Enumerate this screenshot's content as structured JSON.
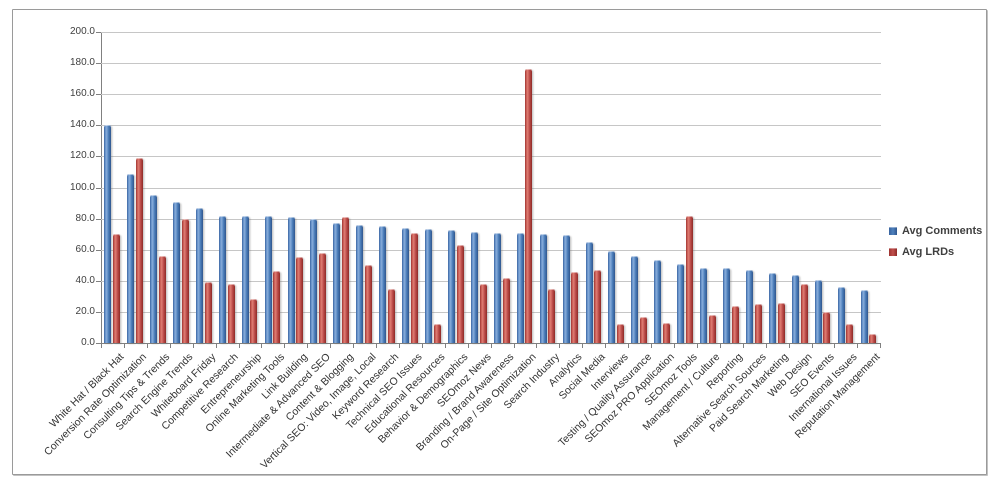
{
  "chart_data": {
    "type": "bar",
    "title": "",
    "categories": [
      "White Hat / Black Hat",
      "Conversion Rate Optimization",
      "Consulting Tips & Trends",
      "Search Engine Trends",
      "Whiteboard Friday",
      "Competitive Research",
      "Entrepreneurship",
      "Online Marketing Tools",
      "Link Building",
      "Intermediate & Advanced SEO",
      "Content & Blogging",
      "Vertical SEO: Video, Image, Local",
      "Keyword Research",
      "Technical SEO Issues",
      "Educational Resources",
      "Behavior & Demographics",
      "SEOmoz News",
      "Branding / Brand Awareness",
      "On-Page / Site Optimization",
      "Search Industry",
      "Analytics",
      "Social Media",
      "Interviews",
      "Testing / Quality Assurance",
      "SEOmoz PRO Application",
      "SEOmoz Tools",
      "Management / Culture",
      "Reporting",
      "Alternative Search Sources",
      "Paid Search Marketing",
      "Web Design",
      "SEO Events",
      "International Issues",
      "Reputation Management"
    ],
    "series": [
      {
        "name": "Avg Comments",
        "color": "#4f81bd",
        "values": [
          140.5,
          109,
          95,
          90.5,
          87,
          82,
          82,
          82,
          81,
          80,
          77,
          76,
          75.5,
          74,
          73.5,
          72.5,
          71.5,
          71,
          71,
          70,
          69.5,
          65,
          59,
          56,
          53.5,
          51,
          48.5,
          48,
          47,
          45,
          44,
          40.5,
          36,
          34
        ]
      },
      {
        "name": "Avg LRDs",
        "color": "#c0504d",
        "values": [
          70,
          119,
          56,
          80,
          39,
          38,
          28,
          46,
          55,
          58,
          81,
          50,
          35,
          70.5,
          12,
          63,
          38,
          41.5,
          176,
          35,
          45.5,
          47,
          12,
          17,
          13,
          82,
          18,
          24,
          25,
          26,
          38,
          20,
          12,
          6
        ]
      }
    ],
    "xlabel": "",
    "ylabel": "",
    "ylim": [
      0,
      200
    ],
    "ytick_step": 20,
    "yticks": [
      "0.0",
      "20.0",
      "40.0",
      "60.0",
      "80.0",
      "100.0",
      "120.0",
      "140.0",
      "160.0",
      "180.0",
      "200.0"
    ],
    "grid": true,
    "legend_position": "right"
  }
}
